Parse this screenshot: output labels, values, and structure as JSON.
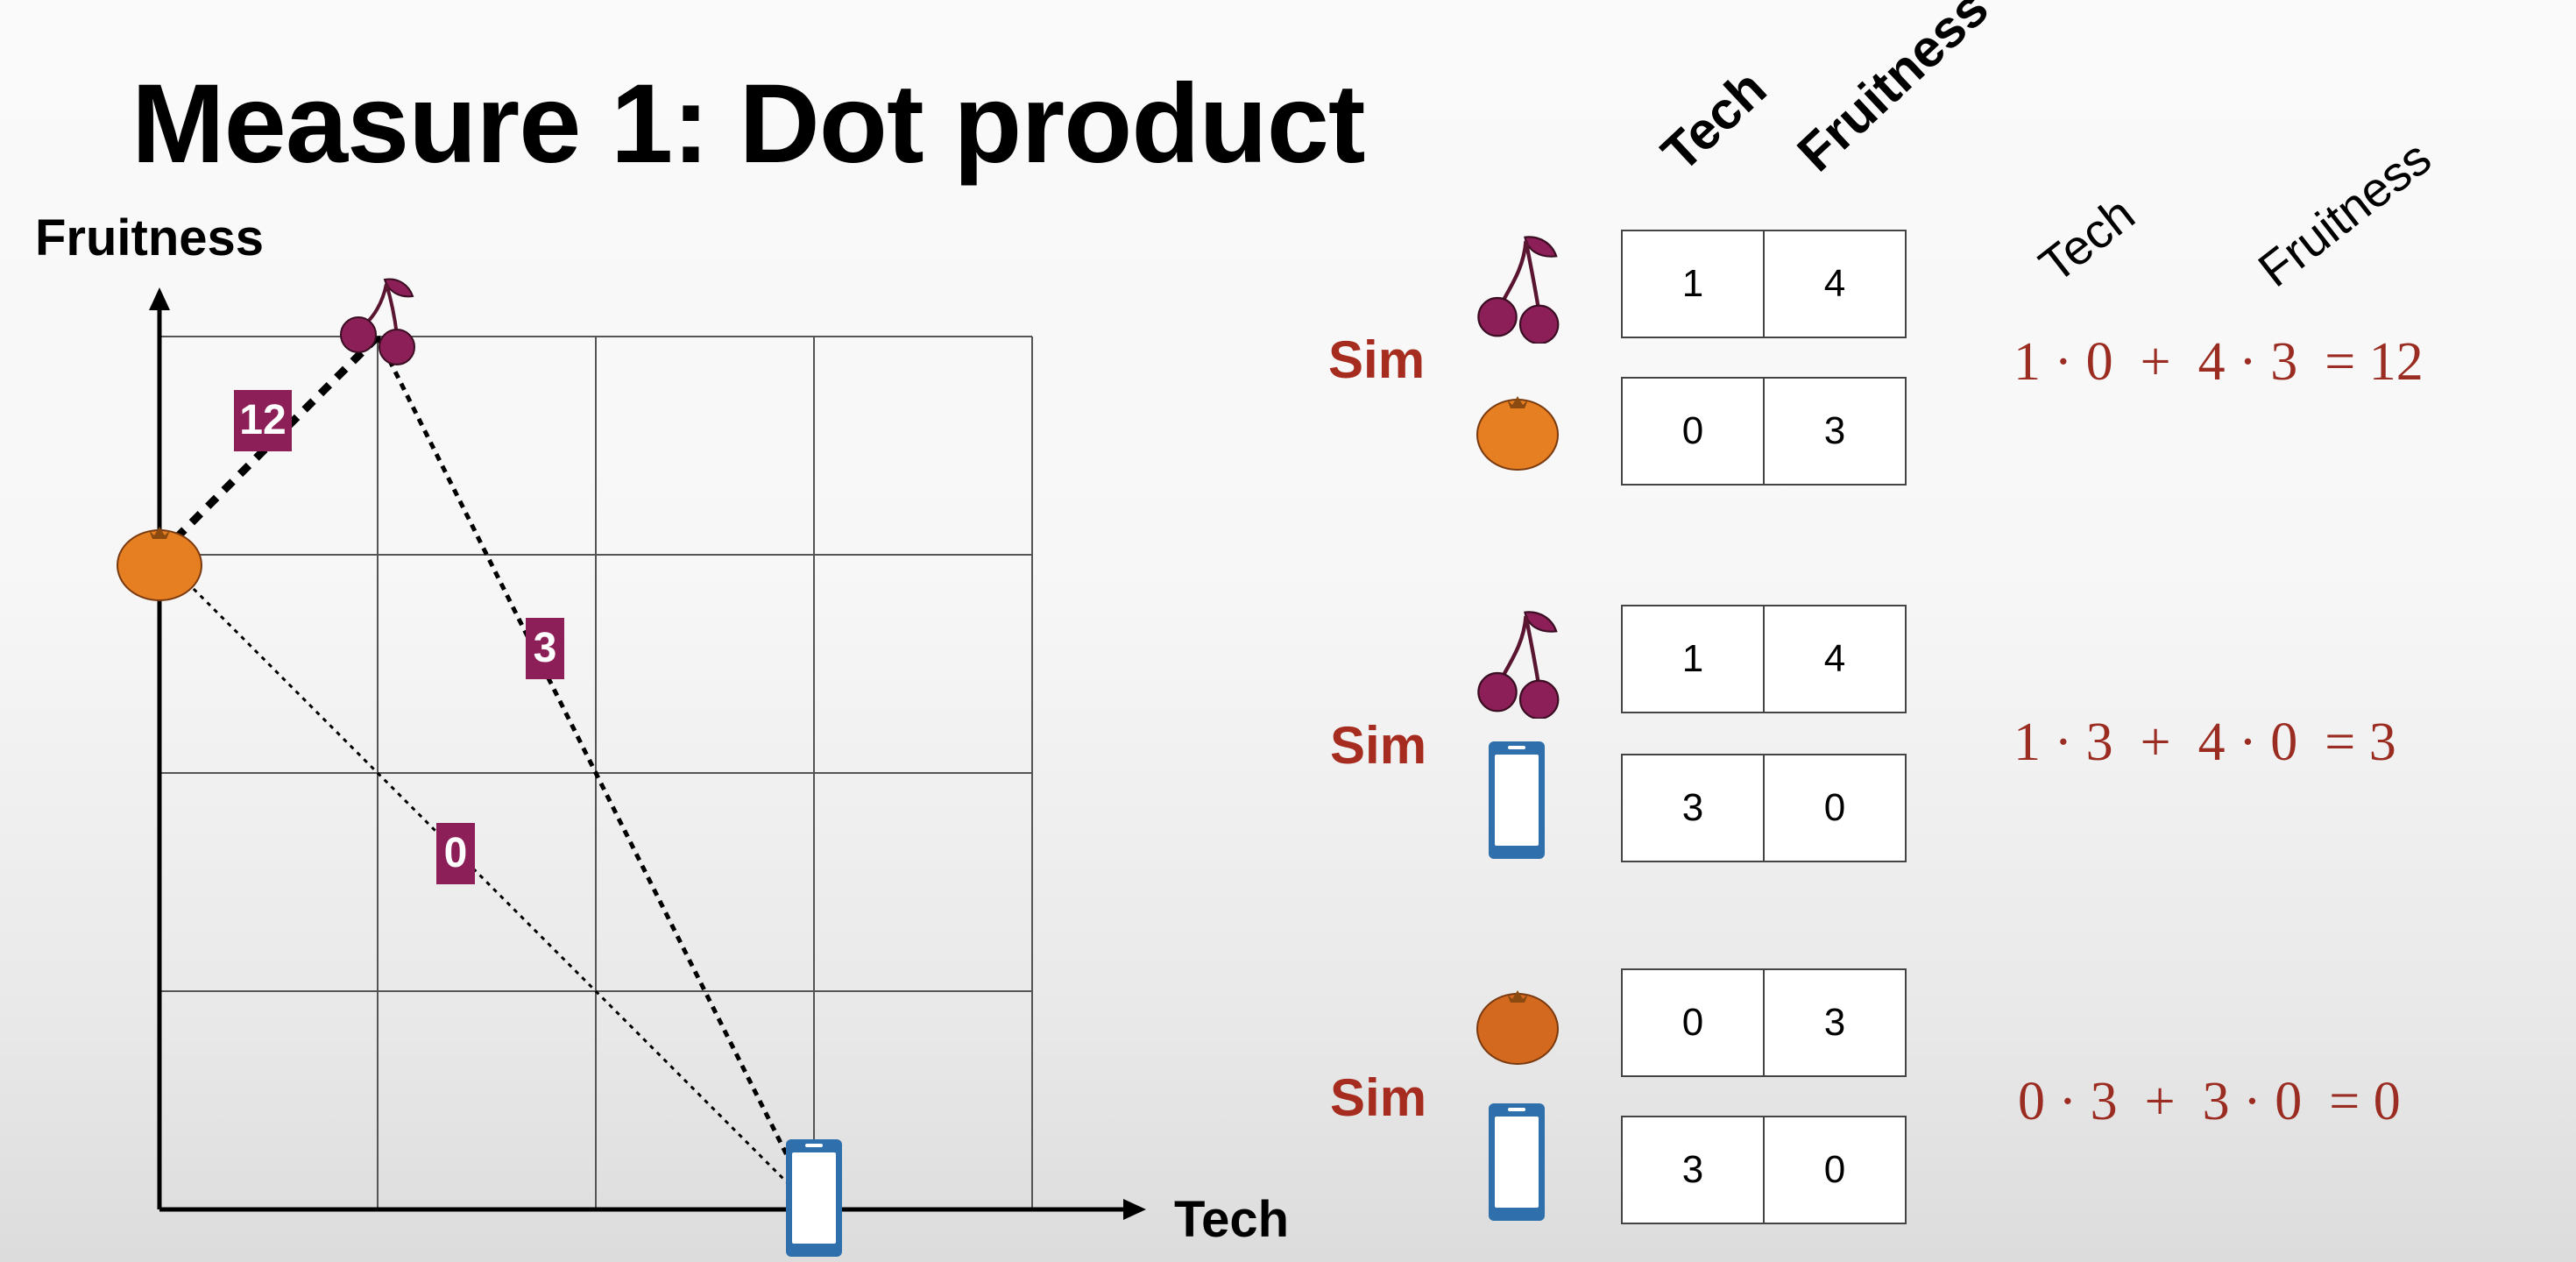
{
  "title": "Measure 1: Dot product",
  "chart_data": {
    "type": "scatter",
    "xlabel": "Tech",
    "ylabel": "Fruitness",
    "xlim": [
      0,
      4
    ],
    "ylim": [
      0,
      4
    ],
    "grid": true,
    "points": [
      {
        "icon": "cherry-icon",
        "x": 1,
        "y": 4
      },
      {
        "icon": "orange-icon",
        "x": 0,
        "y": 3
      },
      {
        "icon": "phone-icon",
        "x": 3,
        "y": 0
      }
    ],
    "edges": [
      {
        "from": 0,
        "to": 1,
        "label": "12"
      },
      {
        "from": 0,
        "to": 2,
        "label": "3"
      },
      {
        "from": 1,
        "to": 2,
        "label": "0"
      }
    ]
  },
  "column_headers": {
    "bold": [
      "Tech",
      "Fruitness"
    ],
    "light": [
      "Tech",
      "Fruitness"
    ]
  },
  "comparisons": [
    {
      "label": "Sim",
      "items": [
        {
          "icon": "cherry-icon",
          "values": [
            "1",
            "4"
          ]
        },
        {
          "icon": "orange-icon",
          "values": [
            "0",
            "3"
          ]
        }
      ],
      "equation": "1 · 0  +  4 · 3  = 12"
    },
    {
      "label": "Sim",
      "items": [
        {
          "icon": "cherry-icon",
          "values": [
            "1",
            "4"
          ]
        },
        {
          "icon": "phone-icon",
          "values": [
            "3",
            "0"
          ]
        }
      ],
      "equation": "1 · 3  +  4 · 0  = 3"
    },
    {
      "label": "Sim",
      "items": [
        {
          "icon": "orange-icon",
          "values": [
            "0",
            "3"
          ]
        },
        {
          "icon": "phone-icon",
          "values": [
            "3",
            "0"
          ]
        }
      ],
      "equation": "0 · 3  +  3 · 0  = 0"
    }
  ],
  "colors": {
    "edge_label": "#8c1f57",
    "cherry": "#8c1f57",
    "orange": "#e67e22",
    "phone": "#2e6fac",
    "sim_text": "#a52c1e"
  }
}
